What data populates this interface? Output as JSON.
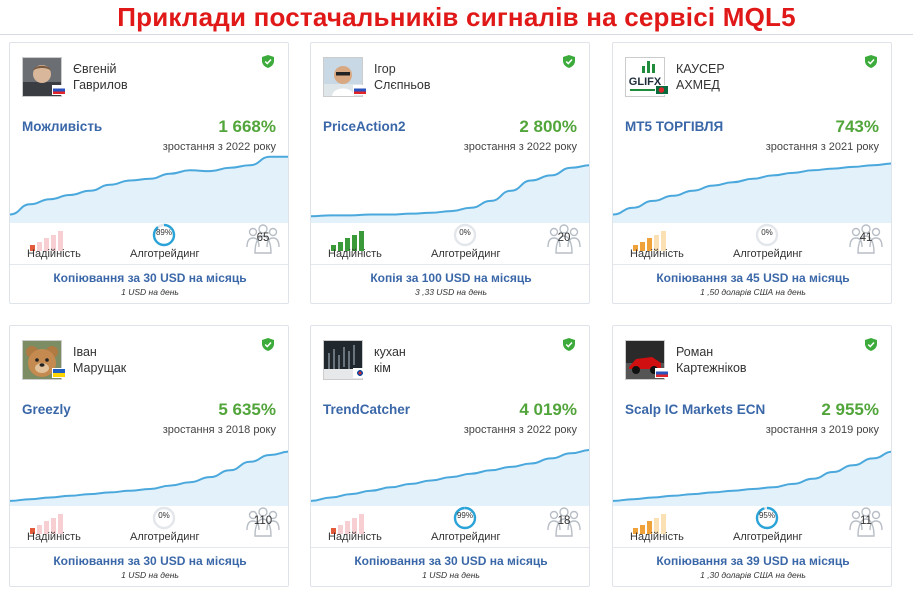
{
  "page_title": "Приклади постачальників сигналів на сервісі MQL5",
  "colors": {
    "title_red": "#e01818",
    "link_blue": "#3a67a8",
    "growth_green": "#52a53a",
    "chart_line": "#4aa8dc",
    "chart_fill": "#e3f1fa",
    "verified_green": "#3cab3c"
  },
  "labels": {
    "reliability": "Надійність",
    "algotrading": "Алготрейдинг"
  },
  "cards": [
    {
      "first_name": "Євгеній",
      "last_name": "Гаврилов",
      "avatar_icon": "portrait-man-avatar",
      "flag": "russia-flag-icon",
      "signal": "Можливість",
      "growth": "1 668%",
      "since": "зростання з 2022 року",
      "chart_data": {
        "type": "area",
        "y": [
          10,
          22,
          28,
          33,
          38,
          45,
          50,
          52,
          58,
          62,
          61,
          65,
          68,
          78,
          78
        ]
      },
      "reliability_level": 1,
      "reliability_color": "red",
      "algo_pct": "89%",
      "algo_fraction": 0.89,
      "subscribers": "65",
      "copy_text": "Копіювання за 30  USD  на місяць",
      "per_day": "1 USD на день"
    },
    {
      "first_name": "Ігор",
      "last_name": "Слєпньов",
      "avatar_icon": "portrait-man-sunglasses-avatar",
      "flag": "russia-flag-icon",
      "signal": "PriceAction2",
      "growth": "2 800%",
      "since": "зростання з 2022 року",
      "chart_data": {
        "type": "area",
        "y": [
          8,
          9,
          9,
          10,
          10,
          11,
          12,
          14,
          18,
          26,
          38,
          50,
          56,
          65,
          68
        ]
      },
      "reliability_level": 5,
      "reliability_color": "green",
      "algo_pct": "0%",
      "algo_fraction": 0,
      "subscribers": "20",
      "copy_text": "Копія за 100  USD  на місяць",
      "per_day": "3 ,33 USD на день"
    },
    {
      "first_name": "КАУСЕР",
      "last_name": "АХМЕД",
      "avatar_icon": "glifx-logo-avatar",
      "flag": "bangladesh-flag-icon",
      "signal": "MT5 ТОРГІВЛЯ",
      "growth": "743%",
      "since": "зростання з 2021 року",
      "chart_data": {
        "type": "area",
        "y": [
          10,
          18,
          26,
          32,
          38,
          44,
          48,
          52,
          56,
          59,
          62,
          64,
          66,
          68,
          70
        ]
      },
      "reliability_level": 3,
      "reliability_color": "orange",
      "algo_pct": "0%",
      "algo_fraction": 0,
      "subscribers": "41",
      "copy_text": "Копіювання за 45  USD  на місяць",
      "per_day": "1 ,50 доларів США на день"
    },
    {
      "first_name": "Іван",
      "last_name": "Марущак",
      "avatar_icon": "teddy-bear-avatar",
      "flag": "ukraine-flag-icon",
      "signal": "Greezly",
      "growth": "5 635%",
      "since": "зростання з 2018 року",
      "chart_data": {
        "type": "area",
        "y": [
          6,
          8,
          10,
          12,
          14,
          16,
          18,
          20,
          24,
          28,
          34,
          42,
          52,
          60,
          64
        ]
      },
      "reliability_level": 1,
      "reliability_color": "red",
      "algo_pct": "0%",
      "algo_fraction": 0,
      "subscribers": "110",
      "copy_text": "Копіювання за 30  USD  на місяць",
      "per_day": "1 USD на день"
    },
    {
      "first_name": "кухан",
      "last_name": "кім",
      "avatar_icon": "trading-chart-avatar",
      "flag": "south-korea-flag-icon",
      "signal": "TrendCatcher",
      "growth": "4 019%",
      "since": "зростання з 2022 року",
      "chart_data": {
        "type": "area",
        "y": [
          6,
          10,
          14,
          18,
          22,
          26,
          30,
          34,
          38,
          42,
          46,
          50,
          56,
          62,
          66
        ]
      },
      "reliability_level": 1,
      "reliability_color": "red",
      "algo_pct": "99%",
      "algo_fraction": 0.99,
      "subscribers": "18",
      "copy_text": "Копіювання за 30  USD  на місяць",
      "per_day": "1 USD на день"
    },
    {
      "first_name": "Роман",
      "last_name": "Картежніков",
      "avatar_icon": "race-car-avatar",
      "flag": "russia-flag-icon",
      "signal": "Scalp IC Markets ECN",
      "growth": "2 955%",
      "since": "зростання з 2019 року",
      "chart_data": {
        "type": "area",
        "y": [
          6,
          8,
          10,
          12,
          14,
          16,
          18,
          20,
          22,
          26,
          32,
          40,
          48,
          56,
          64
        ]
      },
      "reliability_level": 3,
      "reliability_color": "orange",
      "algo_pct": "95%",
      "algo_fraction": 0.95,
      "subscribers": "11",
      "copy_text": "Копіювання за 39  USD  на місяць",
      "per_day": "1 ,30 доларів США на день"
    }
  ]
}
